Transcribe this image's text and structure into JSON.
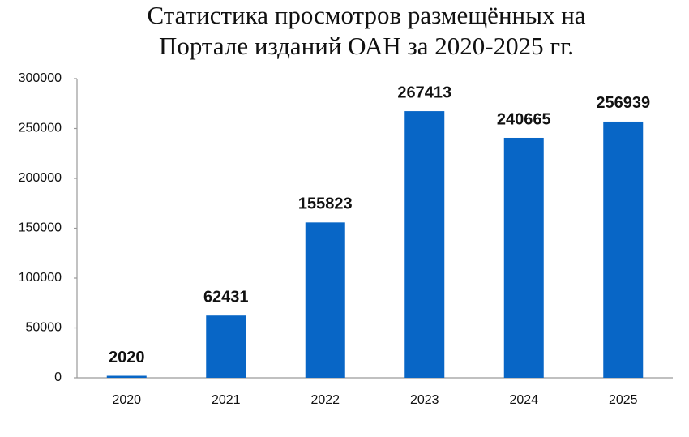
{
  "chart_data": {
    "type": "bar",
    "title": [
      "Статистика просмотров размещённых на",
      "Портале изданий ОАН за 2020-2025 гг."
    ],
    "categories": [
      "2020",
      "2021",
      "2022",
      "2023",
      "2024",
      "2025"
    ],
    "values": [
      2020,
      62431,
      155823,
      267413,
      240665,
      256939
    ],
    "color": "#0866c6",
    "ylim": [
      0,
      300000
    ],
    "yticks": [
      0,
      50000,
      100000,
      150000,
      200000,
      250000,
      300000
    ],
    "grid": false
  }
}
